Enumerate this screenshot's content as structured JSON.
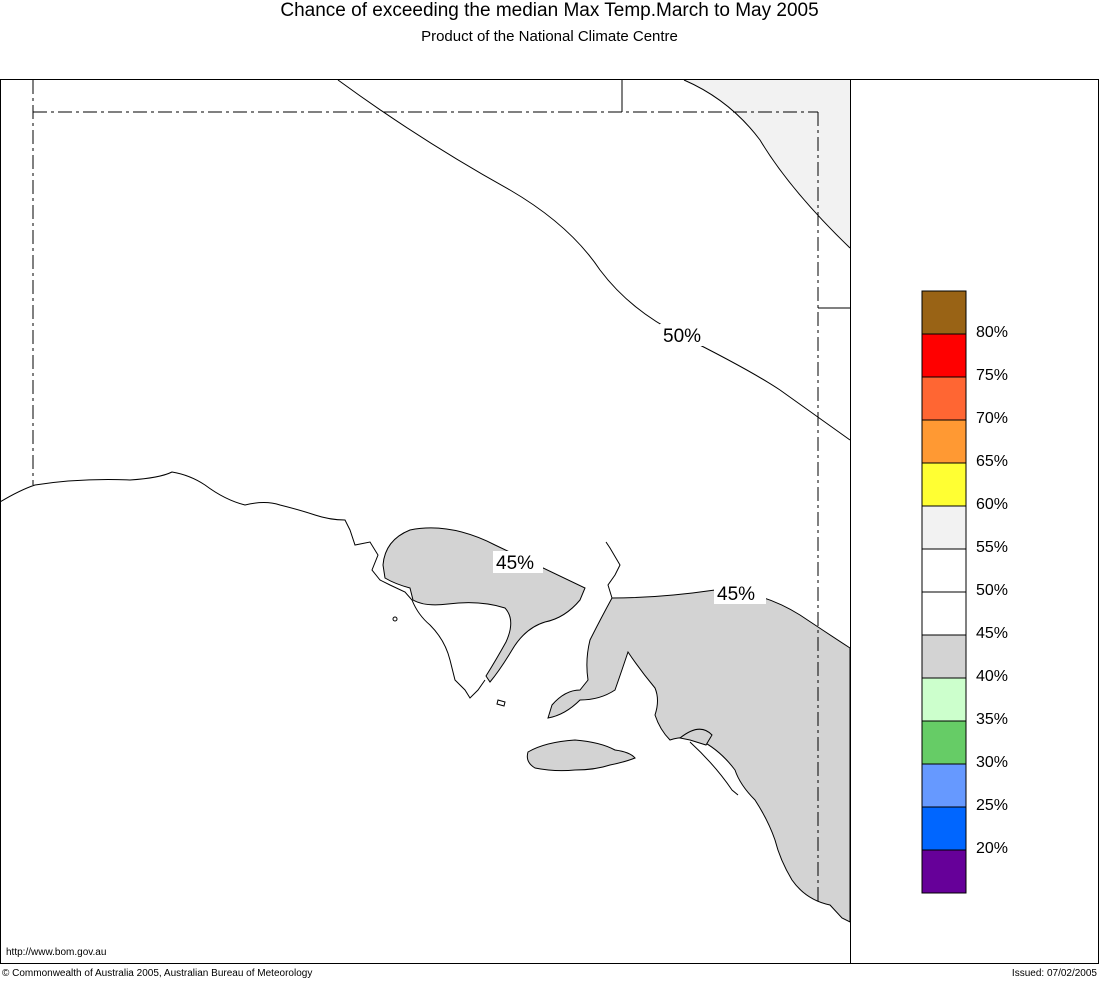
{
  "header": {
    "title": "Chance of exceeding the median Max Temp.March to May 2005",
    "subtitle": "Product of the National Climate Centre"
  },
  "contour_labels": [
    "50%",
    "45%",
    "45%"
  ],
  "colors": {
    "land_40_45": "#d3d3d3",
    "land_50_55": "#f2f2f2",
    "outline": "#000000"
  },
  "legend": {
    "items": [
      {
        "label": "80%",
        "color": "#996315"
      },
      {
        "label": "75%",
        "color": "#ff0000"
      },
      {
        "label": "70%",
        "color": "#ff6633"
      },
      {
        "label": "65%",
        "color": "#ff9933"
      },
      {
        "label": "60%",
        "color": "#ffff33"
      },
      {
        "label": "55%",
        "color": "#f2f2f2"
      },
      {
        "label": "50%",
        "color": "#ffffff"
      },
      {
        "label": "45%",
        "color": "#ffffff"
      },
      {
        "label": "40%",
        "color": "#d3d3d3"
      },
      {
        "label": "35%",
        "color": "#ccffcc"
      },
      {
        "label": "30%",
        "color": "#66cc66"
      },
      {
        "label": "25%",
        "color": "#6699ff"
      },
      {
        "label": "20%",
        "color": "#0066ff"
      },
      {
        "label": "",
        "color": "#660099"
      }
    ]
  },
  "footer": {
    "url": "http://www.bom.gov.au",
    "copyright": "© Commonwealth of Australia 2005, Australian Bureau of Meteorology",
    "issued": "Issued: 07/02/2005"
  }
}
